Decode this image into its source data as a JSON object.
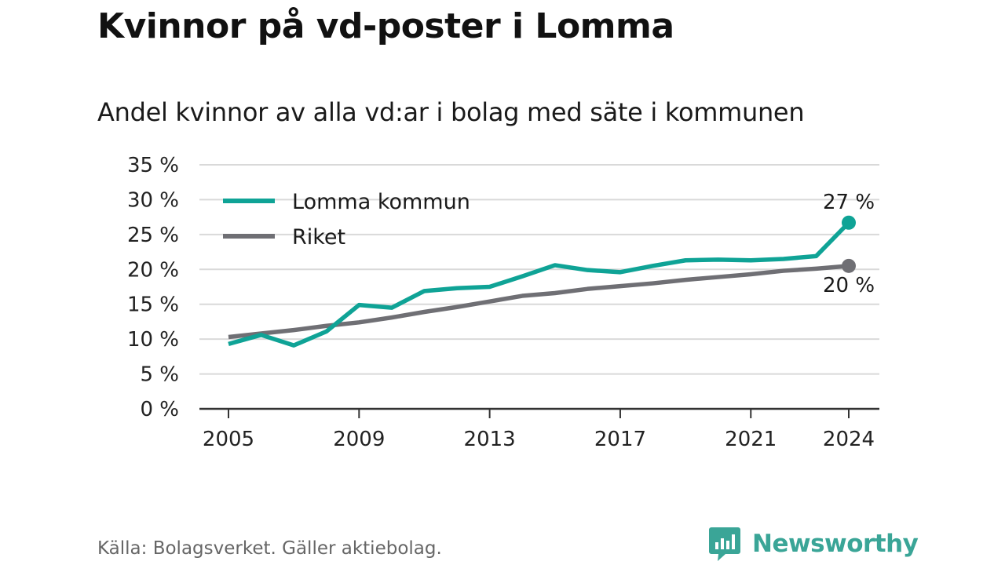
{
  "header": {
    "title": "Kvinnor på vd-poster i Lomma",
    "subtitle": "Andel kvinnor av alla vd:ar i bolag med säte i kommunen"
  },
  "footer": {
    "source": "Källa: Bolagsverket. Gäller aktiebolag.",
    "brand": "Newsworthy"
  },
  "colors": {
    "lomma": "#0fa396",
    "riket": "#6f6f74",
    "grid": "#d9d9d9",
    "axis": "#333333",
    "brand": "#3aa597"
  },
  "chart_data": {
    "type": "line",
    "title": "Kvinnor på vd-poster i Lomma",
    "subtitle": "Andel kvinnor av alla vd:ar i bolag med säte i kommunen",
    "x": [
      2005,
      2006,
      2007,
      2008,
      2009,
      2010,
      2011,
      2012,
      2013,
      2014,
      2015,
      2016,
      2017,
      2018,
      2019,
      2020,
      2021,
      2022,
      2023,
      2024
    ],
    "x_ticks": [
      2005,
      2009,
      2013,
      2017,
      2021,
      2024
    ],
    "y_ticks": [
      0,
      5,
      10,
      15,
      20,
      25,
      30,
      35
    ],
    "y_tick_labels": [
      "0 %",
      "5 %",
      "10 %",
      "15 %",
      "20 %",
      "25 %",
      "30 %",
      "35 %"
    ],
    "ylim": [
      0,
      35
    ],
    "grid": true,
    "legend_position": "top-left",
    "series": [
      {
        "name": "Lomma kommun",
        "color": "#0fa396",
        "values": [
          9.3,
          10.6,
          9.1,
          11.1,
          14.9,
          14.5,
          16.9,
          17.3,
          17.5,
          19.0,
          20.6,
          19.9,
          19.6,
          20.5,
          21.3,
          21.4,
          21.3,
          21.5,
          21.9,
          26.7
        ],
        "end_label": "27 %"
      },
      {
        "name": "Riket",
        "color": "#6f6f74",
        "values": [
          10.3,
          10.8,
          11.3,
          11.9,
          12.4,
          13.1,
          13.9,
          14.6,
          15.4,
          16.2,
          16.6,
          17.2,
          17.6,
          18.0,
          18.5,
          18.9,
          19.3,
          19.8,
          20.1,
          20.5
        ],
        "end_label": "20 %"
      }
    ]
  }
}
